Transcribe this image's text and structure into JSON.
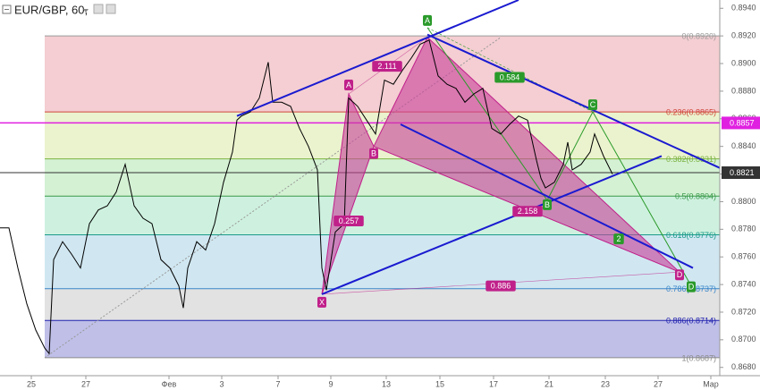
{
  "chart_data": {
    "type": "line",
    "title": "EUR/GBP, 60,",
    "color": "#000000",
    "xlim": [
      0,
      161
    ],
    "ylim": [
      0.8674,
      0.8946
    ],
    "xticks": [
      {
        "value": 7,
        "label": "25"
      },
      {
        "value": 19.2,
        "label": "27"
      },
      {
        "value": 37.8,
        "label": "Фев"
      },
      {
        "value": 49.6,
        "label": "3"
      },
      {
        "value": 62.2,
        "label": "7"
      },
      {
        "value": 74,
        "label": "9"
      },
      {
        "value": 86.4,
        "label": "13"
      },
      {
        "value": 98.4,
        "label": "15"
      },
      {
        "value": 110.4,
        "label": "17"
      },
      {
        "value": 122.8,
        "label": "21"
      },
      {
        "value": 135.4,
        "label": "23"
      },
      {
        "value": 147.2,
        "label": "27"
      },
      {
        "value": 159,
        "label": "Мар"
      }
    ],
    "yticks": [
      {
        "value": 0.868,
        "label": "0.8680"
      },
      {
        "value": 0.87,
        "label": "0.8700"
      },
      {
        "value": 0.872,
        "label": "0.8720"
      },
      {
        "value": 0.874,
        "label": "0.8740"
      },
      {
        "value": 0.876,
        "label": "0.8760"
      },
      {
        "value": 0.878,
        "label": "0.8780"
      },
      {
        "value": 0.88,
        "label": "0.8800"
      },
      {
        "value": 0.882,
        "label": "0.8820"
      },
      {
        "value": 0.884,
        "label": "0.8840"
      },
      {
        "value": 0.886,
        "label": "0.8860"
      },
      {
        "value": 0.888,
        "label": "0.8880"
      },
      {
        "value": 0.89,
        "label": "0.8900"
      },
      {
        "value": 0.892,
        "label": "0.8920"
      },
      {
        "value": 0.894,
        "label": "0.8940"
      }
    ],
    "x": [
      0,
      2,
      4,
      6,
      8,
      10,
      11,
      12,
      14,
      16,
      18,
      20,
      22,
      24,
      26,
      28,
      30,
      32,
      34,
      36,
      38,
      40,
      41,
      42,
      44,
      46,
      48,
      50,
      52,
      53,
      54,
      56,
      58,
      60,
      61,
      63,
      65,
      67,
      69,
      71,
      72,
      73,
      75,
      77,
      78,
      80,
      82,
      84,
      86,
      88,
      90,
      92,
      94,
      96,
      98,
      100,
      102,
      104,
      106,
      108,
      110,
      112,
      114,
      116,
      118,
      120,
      121,
      122,
      124,
      126,
      127,
      128,
      130,
      132,
      133,
      135,
      137
    ],
    "values": [
      0.8781,
      0.8781,
      0.8752,
      0.8726,
      0.8707,
      0.8694,
      0.869,
      0.8758,
      0.8771,
      0.8762,
      0.8752,
      0.8784,
      0.8794,
      0.8797,
      0.8807,
      0.8827,
      0.8797,
      0.8788,
      0.8784,
      0.8758,
      0.8752,
      0.8739,
      0.8723,
      0.8752,
      0.8771,
      0.8765,
      0.8784,
      0.8814,
      0.8836,
      0.8859,
      0.8862,
      0.8865,
      0.8875,
      0.8901,
      0.8872,
      0.8872,
      0.8869,
      0.8853,
      0.884,
      0.8823,
      0.8752,
      0.8736,
      0.8778,
      0.8784,
      0.8875,
      0.8869,
      0.8859,
      0.8849,
      0.8888,
      0.8885,
      0.8895,
      0.8904,
      0.8914,
      0.8917,
      0.8891,
      0.8885,
      0.8882,
      0.8872,
      0.8878,
      0.8882,
      0.8853,
      0.8849,
      0.8856,
      0.8862,
      0.8859,
      0.883,
      0.8817,
      0.881,
      0.8814,
      0.8827,
      0.8843,
      0.8823,
      0.8827,
      0.8836,
      0.8849,
      0.8833,
      0.882
    ],
    "fib": {
      "x_start": 10,
      "levels": [
        {
          "value": 0.892,
          "label": "0(0.8920)",
          "color": "#9a9a9a"
        },
        {
          "value": 0.8865,
          "label": "0.236(0.8865)",
          "color": "#d0453a"
        },
        {
          "value": 0.8831,
          "label": "0.382(0.8831)",
          "color": "#7cb342"
        },
        {
          "value": 0.8804,
          "label": "0.5(0.8804)",
          "color": "#3a9a4a"
        },
        {
          "value": 0.8776,
          "label": "0.618(0.8776)",
          "color": "#1a9a8a"
        },
        {
          "value": 0.8737,
          "label": "0.786(0.8737)",
          "color": "#3a86c8"
        },
        {
          "value": 0.8714,
          "label": "0.886(0.8714)",
          "color": "#2020b0"
        },
        {
          "value": 0.8687,
          "label": "1(0.8687)",
          "color": "#8a8a8a"
        }
      ],
      "band_colors": [
        "#f2c6ca",
        "#e8f1c6",
        "#cdeecd",
        "#c6efd9",
        "#c8e3ef",
        "#dddddd",
        "#b4b4e4"
      ]
    },
    "price_lines": [
      {
        "value": 0.8857,
        "color": "#e020e0"
      },
      {
        "value": 0.8821,
        "color": "#333333"
      }
    ],
    "trend_lines": {
      "color": "#1a1ad0",
      "lines": [
        [
          53,
          0.8862,
          116,
          0.8946
        ],
        [
          95.6,
          0.8921,
          164,
          0.882
        ],
        [
          89.6,
          0.8856,
          155,
          0.8752
        ],
        [
          72,
          0.8733,
          148,
          0.8833
        ]
      ]
    },
    "guide_line": [
      10,
      0.8687,
      112,
      0.8919
    ],
    "magenta_pattern": {
      "color": "#c0208a",
      "fill": "#c8409a",
      "points": [
        {
          "label": "X",
          "x": 72,
          "y": 0.8733
        },
        {
          "label": "A",
          "x": 78,
          "y": 0.8878
        },
        {
          "label": "B",
          "x": 83.6,
          "y": 0.884
        },
        {
          "label": null,
          "x": 95.6,
          "y": 0.8919
        },
        {
          "label": "D",
          "x": 152,
          "y": 0.8749
        }
      ],
      "ratios": [
        {
          "label": "0.257",
          "x": 78,
          "y": 0.8786
        },
        {
          "label": "2.111",
          "x": 86.6,
          "y": 0.8898
        },
        {
          "label": "2.158",
          "x": 118,
          "y": 0.8793
        },
        {
          "label": "0.886",
          "x": 112,
          "y": 0.8739
        }
      ]
    },
    "green_pattern": {
      "color": "#2a9a2a",
      "points": [
        {
          "label": "A",
          "x": 95.6,
          "y": 0.8926
        },
        {
          "label": "B",
          "x": 122.4,
          "y": 0.8801
        },
        {
          "label": "C",
          "x": 132.6,
          "y": 0.8865
        },
        {
          "label": "D",
          "x": 154.6,
          "y": 0.8739
        }
      ],
      "ratios": [
        {
          "label": "0.584",
          "x": 114,
          "y": 0.889
        },
        {
          "label": "2",
          "x": 138.4,
          "y": 0.8773
        }
      ]
    }
  }
}
